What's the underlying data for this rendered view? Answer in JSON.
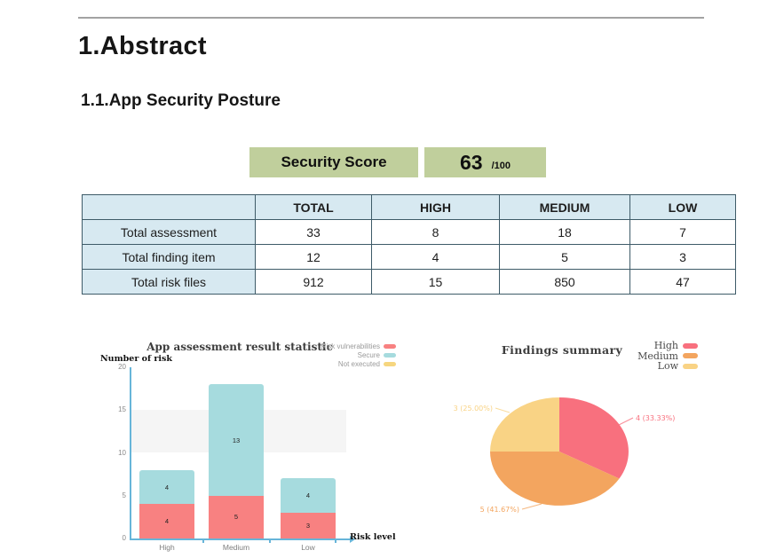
{
  "page": {
    "heading": "1.Abstract",
    "subheading": "1.1.App Security Posture"
  },
  "security_score": {
    "label": "Security Score",
    "value": "63",
    "denominator": "/100",
    "box_color": "#c0cf9c"
  },
  "summary_table": {
    "columns": [
      "TOTAL",
      "HIGH",
      "MEDIUM",
      "LOW"
    ],
    "rows": [
      {
        "label": "Total assessment",
        "values": [
          "33",
          "8",
          "18",
          "7"
        ]
      },
      {
        "label": "Total finding item",
        "values": [
          "12",
          "4",
          "5",
          "3"
        ]
      },
      {
        "label": "Total risk files",
        "values": [
          "912",
          "15",
          "850",
          "47"
        ]
      }
    ],
    "header_bg": "#d7e9f1",
    "border_color": "#3e5b68"
  },
  "chart_data": [
    {
      "type": "bar",
      "stacked": true,
      "title": "App assessment result statistic",
      "ylabel": "Number of risk",
      "xlabel": "Risk level",
      "categories": [
        "High",
        "Medium",
        "Low"
      ],
      "series": [
        {
          "name": "Risk vulnerabilities",
          "color": "#f88181",
          "values": [
            4,
            5,
            3
          ]
        },
        {
          "name": "Secure",
          "color": "#a6dbde",
          "values": [
            4,
            13,
            4
          ]
        },
        {
          "name": "Not executed",
          "color": "#f6d67f",
          "values": [
            0,
            0,
            0
          ]
        }
      ],
      "ylim": [
        0,
        20
      ],
      "yticks": [
        0,
        5,
        10,
        15,
        20
      ],
      "legend_position": "top-right",
      "axis_color": "#67b5d9"
    },
    {
      "type": "pie",
      "title": "Findings summary",
      "slices": [
        {
          "name": "High",
          "value": 4,
          "percent": "33.33%",
          "label": "4 (33.33%)",
          "color": "#f8707e"
        },
        {
          "name": "Medium",
          "value": 5,
          "percent": "41.67%",
          "label": "5 (41.67%)",
          "color": "#f3a55f"
        },
        {
          "name": "Low",
          "value": 3,
          "percent": "25.00%",
          "label": "3 (25.00%)",
          "color": "#f9d385"
        }
      ],
      "legend_position": "top-right",
      "start_angle_deg": 0,
      "direction": "clockwise"
    }
  ]
}
